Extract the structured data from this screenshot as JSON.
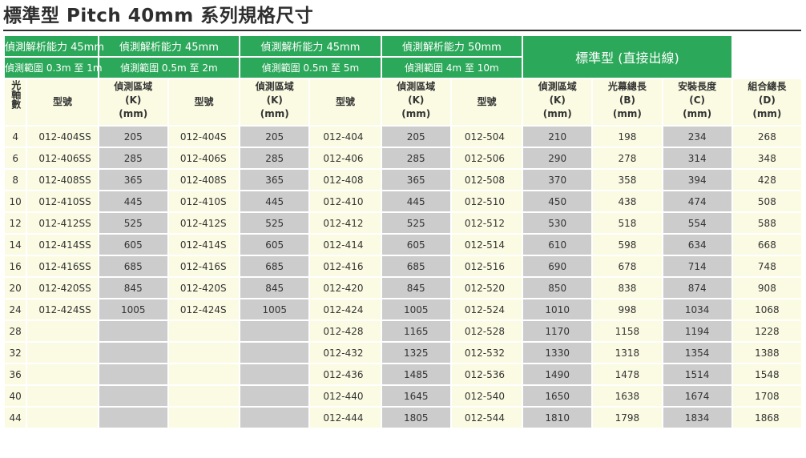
{
  "page": {
    "title": "標準型 Pitch 40mm 系列規格尺寸"
  },
  "groups": [
    {
      "resolution": "偵測解析能力 45mm",
      "range": "偵測範圍 0.3m 至 1m",
      "model_header": "型號",
      "area_header": "偵測區域\n(K)\n(mm)"
    },
    {
      "resolution": "偵測解析能力 45mm",
      "range": "偵測範圍 0.5m 至 2m",
      "model_header": "型號",
      "area_header": "偵測區域\n(K)\n(mm)"
    },
    {
      "resolution": "偵測解析能力 45mm",
      "range": "偵測範圍 0.5m 至 5m",
      "model_header": "型號",
      "area_header": "偵測區域\n(K)\n(mm)"
    },
    {
      "resolution": "偵測解析能力 50mm",
      "range": "偵測範圍 4m 至 10m",
      "model_header": "型號",
      "area_header": "偵測區域\n(K)\n(mm)"
    }
  ],
  "standard": {
    "header": "標準型 (直接出線)",
    "col_b": "光幕總長\n(B)\n(mm)",
    "col_c": "安裝長度\n(C)\n(mm)",
    "col_d": "組合總長\n(D)\n(mm)"
  },
  "axis_header": "光軸數",
  "rows": [
    {
      "axes": "4",
      "m1": "012-404SS",
      "k1": "205",
      "m2": "012-404S",
      "k2": "205",
      "m3": "012-404",
      "k3": "205",
      "m4": "012-504",
      "k4": "210",
      "b": "198",
      "c": "234",
      "d": "268"
    },
    {
      "axes": "6",
      "m1": "012-406SS",
      "k1": "285",
      "m2": "012-406S",
      "k2": "285",
      "m3": "012-406",
      "k3": "285",
      "m4": "012-506",
      "k4": "290",
      "b": "278",
      "c": "314",
      "d": "348"
    },
    {
      "axes": "8",
      "m1": "012-408SS",
      "k1": "365",
      "m2": "012-408S",
      "k2": "365",
      "m3": "012-408",
      "k3": "365",
      "m4": "012-508",
      "k4": "370",
      "b": "358",
      "c": "394",
      "d": "428"
    },
    {
      "axes": "10",
      "m1": "012-410SS",
      "k1": "445",
      "m2": "012-410S",
      "k2": "445",
      "m3": "012-410",
      "k3": "445",
      "m4": "012-510",
      "k4": "450",
      "b": "438",
      "c": "474",
      "d": "508"
    },
    {
      "axes": "12",
      "m1": "012-412SS",
      "k1": "525",
      "m2": "012-412S",
      "k2": "525",
      "m3": "012-412",
      "k3": "525",
      "m4": "012-512",
      "k4": "530",
      "b": "518",
      "c": "554",
      "d": "588"
    },
    {
      "axes": "14",
      "m1": "012-414SS",
      "k1": "605",
      "m2": "012-414S",
      "k2": "605",
      "m3": "012-414",
      "k3": "605",
      "m4": "012-514",
      "k4": "610",
      "b": "598",
      "c": "634",
      "d": "668"
    },
    {
      "axes": "16",
      "m1": "012-416SS",
      "k1": "685",
      "m2": "012-416S",
      "k2": "685",
      "m3": "012-416",
      "k3": "685",
      "m4": "012-516",
      "k4": "690",
      "b": "678",
      "c": "714",
      "d": "748"
    },
    {
      "axes": "20",
      "m1": "012-420SS",
      "k1": "845",
      "m2": "012-420S",
      "k2": "845",
      "m3": "012-420",
      "k3": "845",
      "m4": "012-520",
      "k4": "850",
      "b": "838",
      "c": "874",
      "d": "908"
    },
    {
      "axes": "24",
      "m1": "012-424SS",
      "k1": "1005",
      "m2": "012-424S",
      "k2": "1005",
      "m3": "012-424",
      "k3": "1005",
      "m4": "012-524",
      "k4": "1010",
      "b": "998",
      "c": "1034",
      "d": "1068"
    },
    {
      "axes": "28",
      "m1": "",
      "k1": "",
      "m2": "",
      "k2": "",
      "m3": "012-428",
      "k3": "1165",
      "m4": "012-528",
      "k4": "1170",
      "b": "1158",
      "c": "1194",
      "d": "1228"
    },
    {
      "axes": "32",
      "m1": "",
      "k1": "",
      "m2": "",
      "k2": "",
      "m3": "012-432",
      "k3": "1325",
      "m4": "012-532",
      "k4": "1330",
      "b": "1318",
      "c": "1354",
      "d": "1388"
    },
    {
      "axes": "36",
      "m1": "",
      "k1": "",
      "m2": "",
      "k2": "",
      "m3": "012-436",
      "k3": "1485",
      "m4": "012-536",
      "k4": "1490",
      "b": "1478",
      "c": "1514",
      "d": "1548"
    },
    {
      "axes": "40",
      "m1": "",
      "k1": "",
      "m2": "",
      "k2": "",
      "m3": "012-440",
      "k3": "1645",
      "m4": "012-540",
      "k4": "1650",
      "b": "1638",
      "c": "1674",
      "d": "1708"
    },
    {
      "axes": "44",
      "m1": "",
      "k1": "",
      "m2": "",
      "k2": "",
      "m3": "012-444",
      "k3": "1805",
      "m4": "012-544",
      "k4": "1810",
      "b": "1798",
      "c": "1834",
      "d": "1868"
    }
  ]
}
